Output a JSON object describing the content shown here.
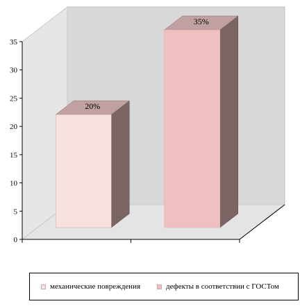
{
  "chart_data": {
    "type": "bar",
    "categories": [
      "механические повреждения",
      "дефекты в соответствии с ГОСТом"
    ],
    "values": [
      20,
      35
    ],
    "data_labels": [
      "20%",
      "35%"
    ],
    "ylim": [
      0,
      35
    ],
    "yticks": [
      "0",
      "5",
      "10",
      "15",
      "20",
      "25",
      "30",
      "35"
    ],
    "grid": false,
    "legend": "bottom",
    "colors": {
      "bar_front": [
        "#f8e0e0",
        "#f0c0c0"
      ],
      "bar_top": "#c0a0a0",
      "bar_side": "#7a6464",
      "back_wall": "#d8d8d8",
      "floor": "#e4e4e4"
    }
  }
}
